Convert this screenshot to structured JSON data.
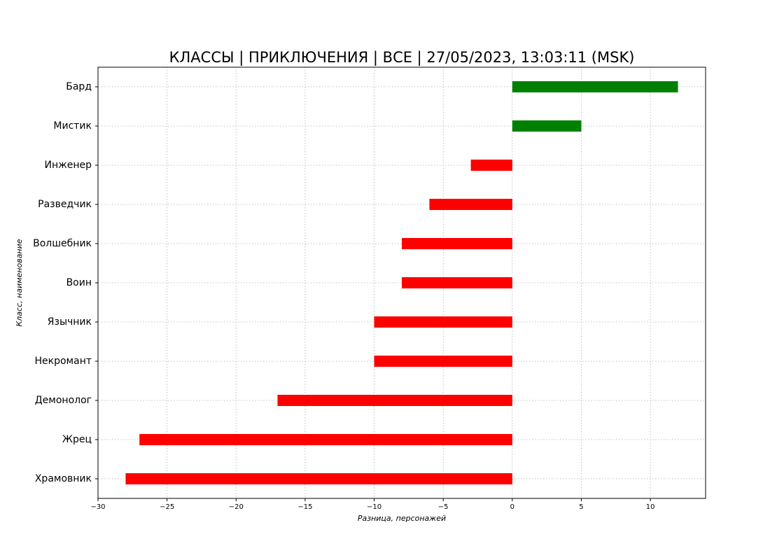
{
  "chart_data": {
    "type": "barh",
    "title": "КЛАССЫ | ПРИКЛЮЧЕНИЯ | ВСЕ | 27/05/2023, 13:03:11 (MSK)",
    "x_label": "Разница, персонажей",
    "y_label": "Класс, наименование",
    "categories": [
      "Бард",
      "Мистик",
      "Инженер",
      "Разведчик",
      "Волшебник",
      "Воин",
      "Язычник",
      "Некромант",
      "Демонолог",
      "Жрец",
      "Храмовник"
    ],
    "values": [
      12,
      5,
      -3,
      -6,
      -8,
      -8,
      -10,
      -10,
      -17,
      -27,
      -28
    ],
    "colors": [
      "#008000",
      "#008000",
      "#ff0000",
      "#ff0000",
      "#ff0000",
      "#ff0000",
      "#ff0000",
      "#ff0000",
      "#ff0000",
      "#ff0000",
      "#ff0000"
    ],
    "xlim": [
      -30,
      14
    ],
    "xticks": [
      {
        "value": -30,
        "label": "−30"
      },
      {
        "value": -25,
        "label": "−25"
      },
      {
        "value": -20,
        "label": "−20"
      },
      {
        "value": -15,
        "label": "−15"
      },
      {
        "value": -10,
        "label": "−10"
      },
      {
        "value": -5,
        "label": "−5"
      },
      0,
      5,
      10
    ],
    "grid": true
  }
}
